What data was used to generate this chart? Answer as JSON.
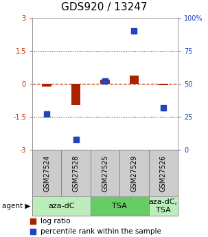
{
  "title": "GDS920 / 13247",
  "samples": [
    "GSM27524",
    "GSM27528",
    "GSM27525",
    "GSM27529",
    "GSM27526"
  ],
  "log_ratios": [
    -0.12,
    -0.95,
    0.18,
    0.38,
    -0.07
  ],
  "percentile_ranks": [
    27,
    8,
    52,
    90,
    32
  ],
  "ylim": [
    -3,
    3
  ],
  "yticks_left": [
    -3,
    -1.5,
    0,
    1.5,
    3
  ],
  "yticks_right_vals": [
    0,
    25,
    50,
    75,
    100
  ],
  "bar_color": "#aa2200",
  "dot_color": "#2244bb",
  "zeroline_color": "#cc2200",
  "dotline_color": "black",
  "sample_bg_color": "#cccccc",
  "agent_groups": [
    {
      "label": "aza-dC",
      "start": 0,
      "end": 2,
      "color": "#bbeebb"
    },
    {
      "label": "TSA",
      "start": 2,
      "end": 4,
      "color": "#66cc66"
    },
    {
      "label": "aza-dC,\nTSA",
      "start": 4,
      "end": 5,
      "color": "#bbeebb"
    }
  ],
  "title_fontsize": 11,
  "tick_fontsize": 7,
  "legend_fontsize": 7.5,
  "agent_fontsize": 8,
  "sample_fontsize": 7
}
